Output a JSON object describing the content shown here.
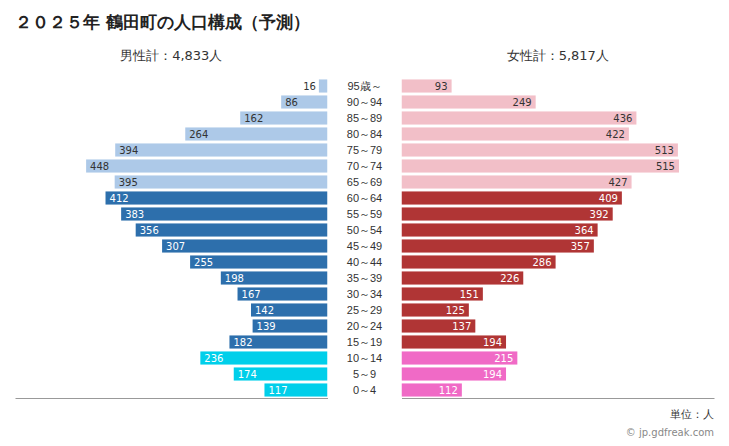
{
  "chart_data": {
    "type": "bar",
    "orientation": "horizontal",
    "title": "２０２５年 鶴田町の人口構成（予測）",
    "categories": [
      "0～4",
      "5～9",
      "10～14",
      "15～19",
      "20～24",
      "25～29",
      "30～34",
      "35～39",
      "40～44",
      "45～49",
      "50～54",
      "55～59",
      "60～64",
      "65～69",
      "70～74",
      "75～79",
      "80～84",
      "85～89",
      "90～94",
      "95歳～"
    ],
    "series": [
      {
        "name": "男性計：4,833人",
        "values": [
          117,
          174,
          236,
          182,
          139,
          142,
          167,
          198,
          255,
          307,
          356,
          383,
          412,
          395,
          448,
          394,
          264,
          162,
          86,
          16
        ],
        "colors": [
          "#00cfea",
          "#00cfea",
          "#00cfea",
          "#2d6fac",
          "#2d6fac",
          "#2d6fac",
          "#2d6fac",
          "#2d6fac",
          "#2d6fac",
          "#2d6fac",
          "#2d6fac",
          "#2d6fac",
          "#2d6fac",
          "#adc9e8",
          "#adc9e8",
          "#adc9e8",
          "#adc9e8",
          "#adc9e8",
          "#adc9e8",
          "#adc9e8"
        ]
      },
      {
        "name": "女性計：5,817人",
        "values": [
          112,
          194,
          215,
          194,
          137,
          125,
          151,
          226,
          286,
          357,
          364,
          392,
          409,
          427,
          515,
          513,
          422,
          436,
          249,
          93
        ],
        "colors": [
          "#f06ac6",
          "#f06ac6",
          "#f06ac6",
          "#b03535",
          "#b03535",
          "#b03535",
          "#b03535",
          "#b03535",
          "#b03535",
          "#b03535",
          "#b03535",
          "#b03535",
          "#b03535",
          "#f2bfc8",
          "#f2bfc8",
          "#f2bfc8",
          "#f2bfc8",
          "#f2bfc8",
          "#f2bfc8",
          "#f2bfc8"
        ]
      }
    ],
    "xlim": [
      0,
      580
    ],
    "data_labels": true,
    "tick_labels": "y",
    "grid": false,
    "annotations": [
      "単位：人",
      "© jp.gdfreak.com"
    ]
  }
}
